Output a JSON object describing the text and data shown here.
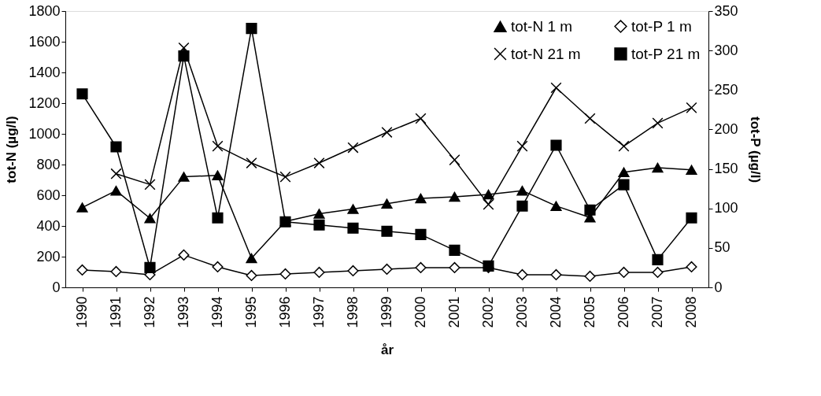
{
  "chart_data": {
    "type": "line",
    "categories": [
      "1990",
      "1991",
      "1992",
      "1993",
      "1994",
      "1995",
      "1996",
      "1997",
      "1998",
      "1999",
      "2000",
      "2001",
      "2002",
      "2003",
      "2004",
      "2005",
      "2006",
      "2007",
      "2008"
    ],
    "series": [
      {
        "name": "tot-N 1 m",
        "color": "#000000",
        "marker": "triangle",
        "values": [
          520,
          630,
          450,
          720,
          730,
          190,
          430,
          480,
          510,
          545,
          580,
          590,
          605,
          630,
          530,
          455,
          750,
          780,
          765
        ]
      },
      {
        "name": "tot-N 21 m",
        "color": "#000000",
        "marker": "cross",
        "values": [
          null,
          740,
          670,
          1560,
          920,
          810,
          720,
          810,
          910,
          1010,
          1100,
          830,
          540,
          920,
          1300,
          1100,
          920,
          1070,
          1170
        ]
      },
      {
        "name": "tot-P 1 m",
        "color": "#000000",
        "marker": "diamond",
        "axis": "y2",
        "values": [
          22,
          20,
          16,
          41,
          26,
          15,
          17,
          19,
          21,
          23,
          25,
          25,
          25,
          16,
          16,
          14,
          19,
          19,
          26
        ]
      },
      {
        "name": "tot-P 21 m",
        "color": "#000000",
        "marker": "square",
        "axis": "y2",
        "values": [
          245,
          178,
          25,
          293,
          88,
          328,
          83,
          79,
          75,
          71,
          67,
          47,
          27,
          103,
          180,
          98,
          130,
          35,
          88
        ]
      }
    ],
    "xlabel": "år",
    "ylabel": "tot-N (µg/l)",
    "y2label": "tot-P (µg/l)",
    "ylim": [
      0,
      1800
    ],
    "yticks": [
      0,
      200,
      400,
      600,
      800,
      1000,
      1200,
      1400,
      1600,
      1800
    ],
    "y2lim": [
      0,
      350
    ],
    "y2ticks": [
      0,
      50,
      100,
      150,
      200,
      250,
      300,
      350
    ],
    "grid": false,
    "legend": "top right"
  }
}
